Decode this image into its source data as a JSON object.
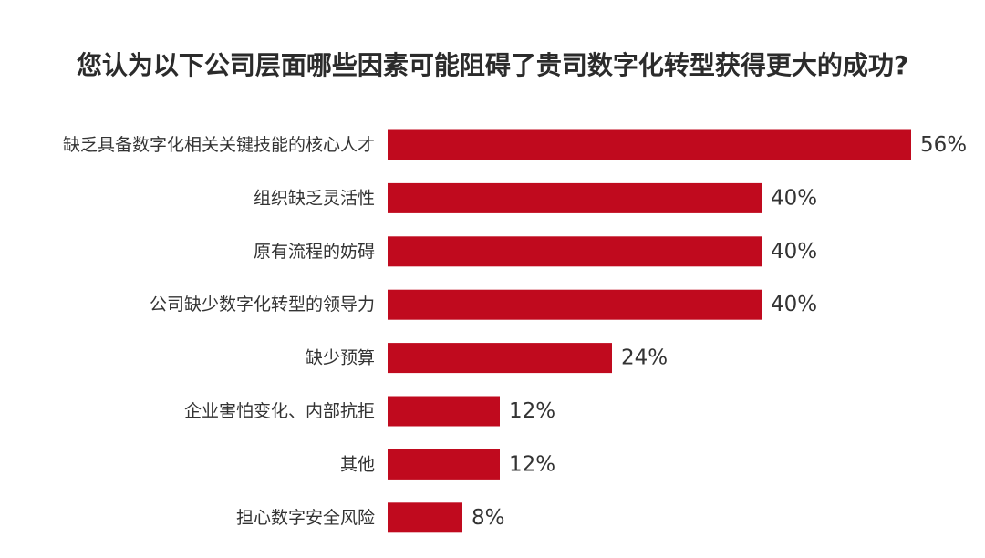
{
  "chart_data": {
    "type": "bar",
    "orientation": "horizontal",
    "title": "您认为以下公司层面哪些因素可能阻碍了贵司数字化转型获得更大的成功?",
    "categories": [
      "缺乏具备数字化相关关键技能的核心人才",
      "组织缺乏灵活性",
      "原有流程的妨碍",
      "公司缺少数字化转型的领导力",
      "缺少预算",
      "企业害怕变化、内部抗拒",
      "其他",
      "担心数字安全风险"
    ],
    "values": [
      56,
      40,
      40,
      40,
      24,
      12,
      12,
      8
    ],
    "value_labels": [
      "56%",
      "40%",
      "40%",
      "40%",
      "24%",
      "12%",
      "12%",
      "8%"
    ],
    "unit": "%",
    "bar_color": "#c00a1e",
    "grid": false,
    "legend": "none"
  }
}
